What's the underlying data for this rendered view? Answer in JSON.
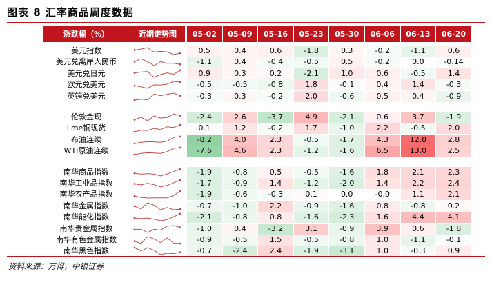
{
  "title": "图表 8  汇率商品周度数据",
  "source": "资料来源：万得，中银证券",
  "header": {
    "change": "涨跌幅（%）",
    "trend": "近期走势图",
    "dates": [
      "05-02",
      "05-09",
      "05-16",
      "05-23",
      "05-30",
      "06-06",
      "06-13",
      "06-20"
    ]
  },
  "groups": [
    {
      "rows": [
        {
          "name": "美元指数",
          "values": [
            "0.5",
            "0.4",
            "0.6",
            "-1.8",
            "0.3",
            "-0.2",
            "-1.1",
            "0.6"
          ]
        },
        {
          "name": "美元兑离岸人民币",
          "values": [
            "-1.1",
            "0.4",
            "-0.4",
            "-0.5",
            "0.5",
            "-0.2",
            "0.0",
            "-0.14"
          ]
        },
        {
          "name": "美元兑日元",
          "values": [
            "0.9",
            "0.3",
            "0.2",
            "-2.1",
            "1.0",
            "0.6",
            "-0.5",
            "1.4"
          ]
        },
        {
          "name": "欧元兑美元",
          "values": [
            "-0.5",
            "-0.5",
            "-0.8",
            "1.8",
            "-0.1",
            "0.4",
            "1.4",
            "-0.3"
          ]
        },
        {
          "name": "英镑兑美元",
          "values": [
            "-0.3",
            "0.3",
            "-0.2",
            "2.0",
            "-0.6",
            "0.5",
            "0.4",
            "-0.9"
          ]
        }
      ]
    },
    {
      "rows": [
        {
          "name": "伦敦金现",
          "values": [
            "-2.4",
            "2.6",
            "-3.7",
            "4.9",
            "-2.1",
            "0.6",
            "3.7",
            "-1.9"
          ]
        },
        {
          "name": "Lme铜现货",
          "values": [
            "0.1",
            "1.2",
            "-0.2",
            "1.7",
            "-1.0",
            "2.2",
            "-0.5",
            "2.0"
          ]
        },
        {
          "name": "布油连续",
          "values": [
            "-8.2",
            "4.0",
            "2.3",
            "-0.5",
            "-1.7",
            "4.3",
            "12.8",
            "2.8"
          ]
        },
        {
          "name": "WTI原油连续",
          "values": [
            "-7.6",
            "4.6",
            "2.3",
            "-1.2",
            "-1.6",
            "6.5",
            "13.0",
            "2.5"
          ]
        }
      ]
    },
    {
      "rows": [
        {
          "name": "南华商品指数",
          "values": [
            "-1.9",
            "-0.8",
            "0.5",
            "-0.5",
            "-1.6",
            "1.8",
            "2.1",
            "2.3"
          ]
        },
        {
          "name": "南华工业品指数",
          "values": [
            "-1.7",
            "-0.9",
            "1.4",
            "-1.2",
            "-2.0",
            "1.4",
            "2.2",
            "2.4"
          ]
        },
        {
          "name": "南华农产品指数",
          "values": [
            "-1.9",
            "-0.6",
            "-0.3",
            "0.1",
            "0.0",
            "-0.0",
            "1.1",
            "2.1"
          ]
        },
        {
          "name": "南华金属指数",
          "values": [
            "-0.7",
            "-1.0",
            "2.2",
            "-0.9",
            "-1.6",
            "0.8",
            "-0.8",
            "0.2"
          ]
        },
        {
          "name": "南华能化指数",
          "values": [
            "-2.1",
            "-0.8",
            "0.8",
            "-1.6",
            "-2.3",
            "1.6",
            "4.4",
            "4.1"
          ]
        },
        {
          "name": "南华贵金属指数",
          "values": [
            "-1.0",
            "0.4",
            "-3.2",
            "3.1",
            "-0.9",
            "3.9",
            "0.6",
            "-1.8"
          ]
        },
        {
          "name": "南华有色金属指数",
          "values": [
            "-0.9",
            "-0.5",
            "1.5",
            "-0.5",
            "-0.8",
            "1.0",
            "-1.1",
            "-0.1"
          ]
        },
        {
          "name": "南华黑色指数",
          "values": [
            "-0.7",
            "-2.4",
            "2.4",
            "-1.9",
            "-3.1",
            "1.0",
            "-0.3",
            "0.9"
          ]
        }
      ]
    }
  ],
  "colors": {
    "header_bg": "#c1151e",
    "rule": "#b9171d",
    "positive_max": "#f8696b",
    "negative_max": "#63be7b",
    "sparkline": "#c0504d"
  }
}
